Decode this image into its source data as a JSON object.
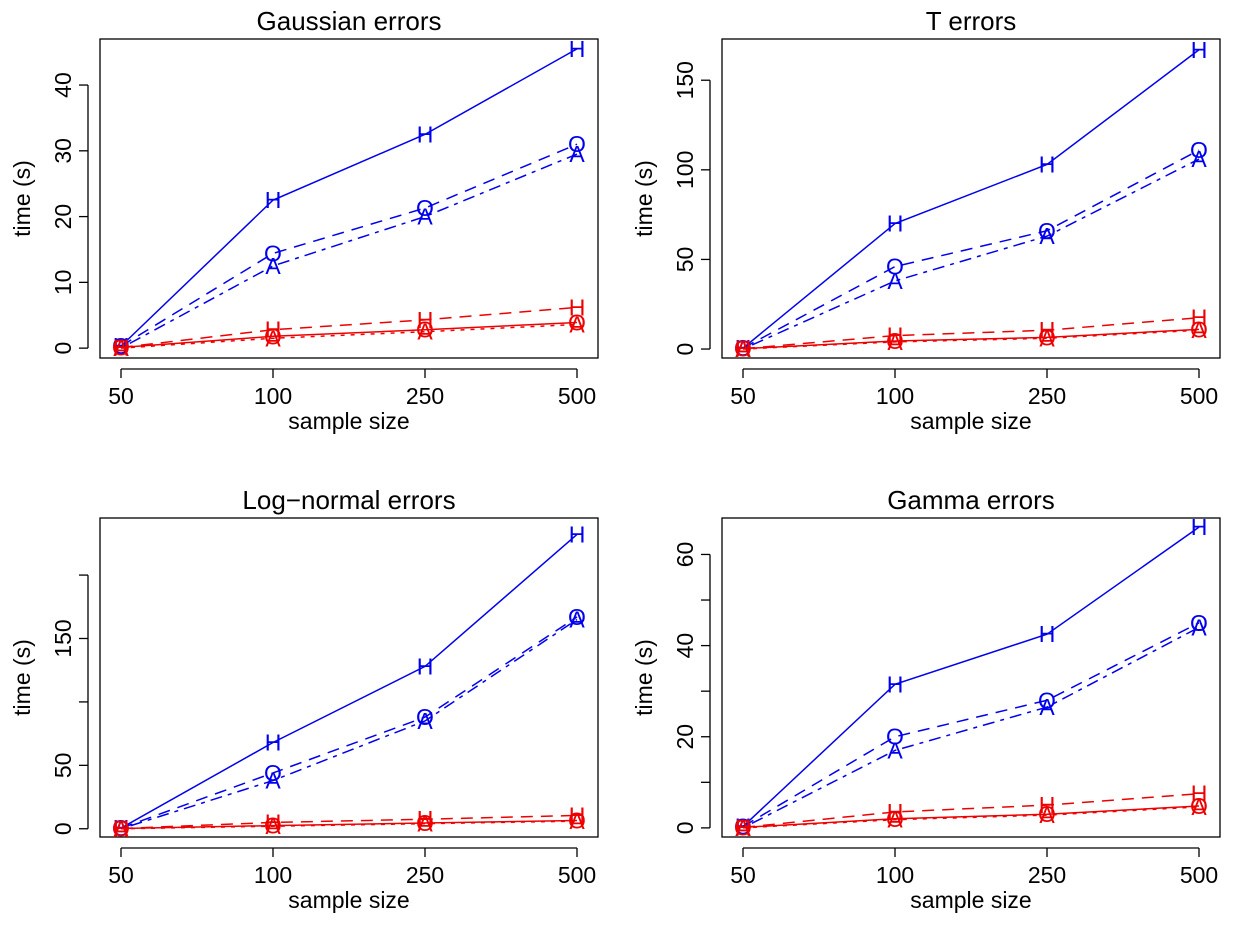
{
  "colors": {
    "blue": "#0000ee",
    "red": "#ee0000",
    "axis": "#000000"
  },
  "line_styles": {
    "solid": "none",
    "dashed": "12 8",
    "dotted": "4 6",
    "dotdash": "4 6 12 6"
  },
  "chart_data": [
    {
      "type": "line",
      "title": "Gaussian errors",
      "xlabel": "sample size",
      "ylabel": "time (s)",
      "categories": [
        "50",
        "100",
        "250",
        "500"
      ],
      "ylim": [
        -1.5,
        47
      ],
      "yticks": [
        0,
        10,
        20,
        30,
        40
      ],
      "ytick_labels": [
        "0",
        "10",
        "20",
        "30",
        "40"
      ],
      "grid": false,
      "series": [
        {
          "marker": "H",
          "color": "blue",
          "style": "solid",
          "values": [
            0.3,
            22.5,
            32.5,
            45.5
          ]
        },
        {
          "marker": "O",
          "color": "blue",
          "style": "dashed",
          "values": [
            0.3,
            14.4,
            21.3,
            31.0
          ]
        },
        {
          "marker": "A",
          "color": "blue",
          "style": "dotdash",
          "values": [
            0.0,
            12.5,
            20.0,
            29.5
          ]
        },
        {
          "marker": "H",
          "color": "red",
          "style": "dashed",
          "values": [
            0.1,
            2.8,
            4.3,
            6.2
          ]
        },
        {
          "marker": "O",
          "color": "red",
          "style": "solid",
          "values": [
            0.1,
            1.8,
            2.8,
            3.9
          ]
        },
        {
          "marker": "A",
          "color": "red",
          "style": "dotted",
          "values": [
            0.0,
            1.5,
            2.5,
            3.6
          ]
        }
      ]
    },
    {
      "type": "line",
      "title": "T errors",
      "xlabel": "sample size",
      "ylabel": "time (s)",
      "categories": [
        "50",
        "100",
        "250",
        "500"
      ],
      "ylim": [
        -5,
        173
      ],
      "yticks": [
        0,
        50,
        100,
        150
      ],
      "ytick_labels": [
        "0",
        "50",
        "100",
        "150"
      ],
      "grid": false,
      "series": [
        {
          "marker": "H",
          "color": "blue",
          "style": "solid",
          "values": [
            0.5,
            70.0,
            103.0,
            167.0
          ]
        },
        {
          "marker": "O",
          "color": "blue",
          "style": "dashed",
          "values": [
            0.5,
            46.0,
            66.0,
            111.0
          ]
        },
        {
          "marker": "A",
          "color": "blue",
          "style": "dotdash",
          "values": [
            0.0,
            38.0,
            63.0,
            106.0
          ]
        },
        {
          "marker": "H",
          "color": "red",
          "style": "dashed",
          "values": [
            0.2,
            7.5,
            10.5,
            17.5
          ]
        },
        {
          "marker": "O",
          "color": "red",
          "style": "solid",
          "values": [
            0.2,
            4.5,
            6.5,
            11.0
          ]
        },
        {
          "marker": "A",
          "color": "red",
          "style": "dotted",
          "values": [
            0.0,
            4.0,
            6.0,
            10.5
          ]
        }
      ]
    },
    {
      "type": "line",
      "title": "Log−normal errors",
      "xlabel": "sample size",
      "ylabel": "time (s)",
      "categories": [
        "50",
        "100",
        "250",
        "500"
      ],
      "ylim": [
        -6.5,
        245
      ],
      "yticks": [
        0,
        50,
        100,
        150,
        200
      ],
      "ytick_labels": [
        "0",
        "50",
        "",
        "150",
        ""
      ],
      "grid": false,
      "series": [
        {
          "marker": "H",
          "color": "blue",
          "style": "solid",
          "values": [
            0.5,
            68.0,
            128.0,
            232.0
          ]
        },
        {
          "marker": "O",
          "color": "blue",
          "style": "dashed",
          "values": [
            0.5,
            44.0,
            88.0,
            167.0
          ]
        },
        {
          "marker": "A",
          "color": "blue",
          "style": "dotdash",
          "values": [
            0.0,
            38.0,
            85.0,
            165.0
          ]
        },
        {
          "marker": "H",
          "color": "red",
          "style": "dashed",
          "values": [
            0.2,
            5.0,
            7.5,
            10.5
          ]
        },
        {
          "marker": "O",
          "color": "red",
          "style": "solid",
          "values": [
            0.2,
            2.5,
            4.5,
            6.5
          ]
        },
        {
          "marker": "A",
          "color": "red",
          "style": "dotted",
          "values": [
            0.0,
            2.0,
            4.0,
            6.0
          ]
        }
      ]
    },
    {
      "type": "line",
      "title": "Gamma errors",
      "xlabel": "sample size",
      "ylabel": "time (s)",
      "categories": [
        "50",
        "100",
        "250",
        "500"
      ],
      "ylim": [
        -2,
        68
      ],
      "yticks": [
        0,
        10,
        20,
        30,
        40,
        50,
        60
      ],
      "ytick_labels": [
        "0",
        "",
        "20",
        "",
        "40",
        "",
        "60"
      ],
      "grid": false,
      "series": [
        {
          "marker": "H",
          "color": "blue",
          "style": "solid",
          "values": [
            0.3,
            31.5,
            42.5,
            66.0
          ]
        },
        {
          "marker": "O",
          "color": "blue",
          "style": "dashed",
          "values": [
            0.3,
            20.0,
            28.0,
            45.0
          ]
        },
        {
          "marker": "A",
          "color": "blue",
          "style": "dotdash",
          "values": [
            0.0,
            17.0,
            26.5,
            44.0
          ]
        },
        {
          "marker": "H",
          "color": "red",
          "style": "dashed",
          "values": [
            0.1,
            3.5,
            5.0,
            7.5
          ]
        },
        {
          "marker": "O",
          "color": "red",
          "style": "solid",
          "values": [
            0.1,
            2.0,
            3.0,
            4.8
          ]
        },
        {
          "marker": "A",
          "color": "red",
          "style": "dotted",
          "values": [
            0.0,
            1.8,
            2.8,
            4.6
          ]
        }
      ]
    }
  ]
}
